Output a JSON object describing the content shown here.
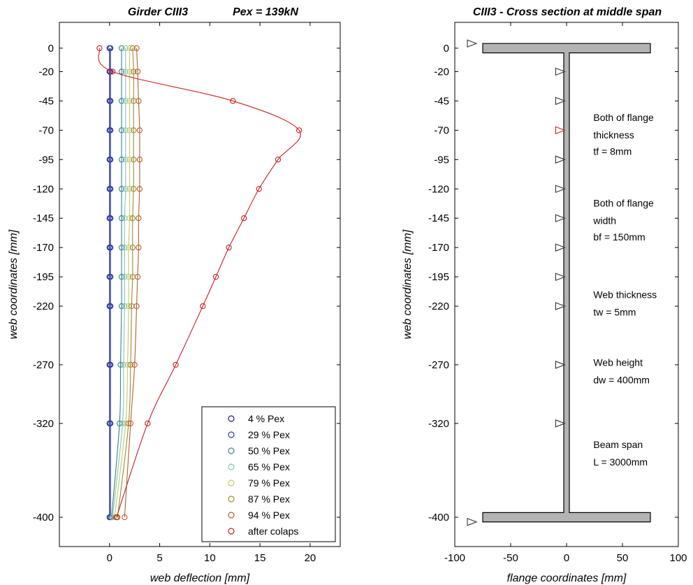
{
  "chart_data": [
    {
      "type": "line",
      "title": "Girder  CIII3",
      "subtitle": "Pex = 139kN",
      "xlabel": "web deflection [mm]",
      "ylabel": "web coordinates [mm]",
      "xlim": [
        -5,
        23
      ],
      "ylim": [
        -425,
        22
      ],
      "xticks": [
        0,
        5,
        10,
        15,
        20
      ],
      "yticks": [
        0,
        -20,
        -45,
        -70,
        -95,
        -120,
        -145,
        -170,
        -195,
        -220,
        -270,
        -320,
        -400
      ],
      "grid": false,
      "legend_position": "bottom-right",
      "y": [
        0,
        -20,
        -45,
        -70,
        -95,
        -120,
        -145,
        -170,
        -195,
        -220,
        -270,
        -320,
        -400
      ],
      "series": [
        {
          "name": "4   % Pex",
          "color": "#1a1a8c",
          "values": [
            0.0,
            0.0,
            0.0,
            0.0,
            0.0,
            0.0,
            0.0,
            0.0,
            0.0,
            0.0,
            0.0,
            0.0,
            0.0
          ]
        },
        {
          "name": "29 % Pex",
          "color": "#2a3f9e",
          "values": [
            0.1,
            0.1,
            0.1,
            0.1,
            0.1,
            0.1,
            0.1,
            0.1,
            0.1,
            0.1,
            0.1,
            0.1,
            0.1
          ]
        },
        {
          "name": "50 % Pex",
          "color": "#3f7f8f",
          "values": [
            1.2,
            1.2,
            1.2,
            1.2,
            1.2,
            1.2,
            1.2,
            1.2,
            1.2,
            1.2,
            1.1,
            1.0,
            0.2
          ]
        },
        {
          "name": "65 % Pex",
          "color": "#7fc8b8",
          "values": [
            1.6,
            1.6,
            1.6,
            1.6,
            1.6,
            1.6,
            1.5,
            1.5,
            1.5,
            1.5,
            1.4,
            1.3,
            0.3
          ]
        },
        {
          "name": "79 % Pex",
          "color": "#c8c870",
          "values": [
            2.0,
            2.0,
            2.0,
            2.0,
            2.0,
            2.0,
            2.0,
            1.9,
            1.9,
            1.9,
            1.8,
            1.6,
            0.5
          ]
        },
        {
          "name": "87 % Pex",
          "color": "#a08a30",
          "values": [
            2.3,
            2.4,
            2.4,
            2.4,
            2.4,
            2.4,
            2.3,
            2.3,
            2.3,
            2.2,
            2.1,
            1.9,
            0.8
          ]
        },
        {
          "name": "94 % Pex",
          "color": "#b5602a",
          "values": [
            2.7,
            2.8,
            2.9,
            3.0,
            3.0,
            3.0,
            2.9,
            2.9,
            2.8,
            2.7,
            2.5,
            2.1,
            1.5
          ]
        },
        {
          "name": "after colaps",
          "color": "#c82020",
          "values": [
            -1.0,
            0.3,
            12.3,
            18.9,
            16.8,
            14.9,
            13.4,
            11.9,
            10.6,
            9.3,
            6.6,
            3.8,
            0.7
          ]
        }
      ]
    },
    {
      "type": "diagram",
      "title": "CIII3 - Cross section at middle span",
      "xlabel": "flange coordinates [mm]",
      "ylabel": "web coordinates [mm]",
      "xlim": [
        -100,
        100
      ],
      "ylim": [
        -425,
        22
      ],
      "xticks": [
        -100,
        -50,
        0,
        50,
        100
      ],
      "yticks": [
        0,
        -20,
        -45,
        -70,
        -95,
        -120,
        -145,
        -170,
        -195,
        -220,
        -270,
        -320,
        -400
      ],
      "grid": false,
      "section": {
        "flange_half_width": 75,
        "flange_thickness": 8,
        "web_half_thickness": 2.5,
        "top": 4,
        "bottom": -404,
        "fill_color": "#b3b3b3"
      },
      "markers": [
        {
          "x": -85,
          "y": 4,
          "color": "#333333"
        },
        {
          "x": -6,
          "y": -20,
          "color": "#333333"
        },
        {
          "x": -6,
          "y": -45,
          "color": "#333333"
        },
        {
          "x": -6,
          "y": -70,
          "color": "#c82020"
        },
        {
          "x": -6,
          "y": -95,
          "color": "#333333"
        },
        {
          "x": -6,
          "y": -120,
          "color": "#333333"
        },
        {
          "x": -6,
          "y": -145,
          "color": "#333333"
        },
        {
          "x": -6,
          "y": -170,
          "color": "#333333"
        },
        {
          "x": -6,
          "y": -195,
          "color": "#333333"
        },
        {
          "x": -6,
          "y": -220,
          "color": "#333333"
        },
        {
          "x": -6,
          "y": -270,
          "color": "#333333"
        },
        {
          "x": -6,
          "y": -320,
          "color": "#333333"
        },
        {
          "x": -85,
          "y": -404,
          "color": "#333333"
        }
      ],
      "annotations": [
        {
          "x": 24,
          "lines": [
            "Both of flange",
            "thickness",
            "tf = 8mm"
          ],
          "y": [
            -59,
            -74,
            -88
          ]
        },
        {
          "x": 24,
          "lines": [
            "Both of flange",
            "width",
            "bf = 150mm"
          ],
          "y": [
            -132,
            -147,
            -161
          ]
        },
        {
          "x": 24,
          "lines": [
            "Web thickness",
            "tw = 5mm"
          ],
          "y": [
            -210,
            -225
          ]
        },
        {
          "x": 24,
          "lines": [
            "Web height",
            "dw = 400mm"
          ],
          "y": [
            -268,
            -283
          ]
        },
        {
          "x": 24,
          "lines": [
            "Beam span",
            "L = 3000mm"
          ],
          "y": [
            -338,
            -353
          ]
        }
      ]
    }
  ]
}
